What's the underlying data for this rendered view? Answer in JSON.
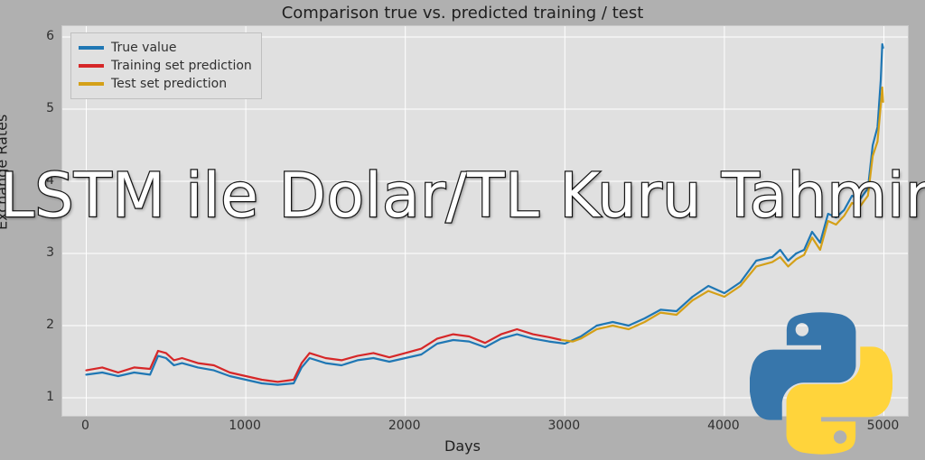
{
  "chart": {
    "type": "line",
    "title": "Comparison true vs. predicted training / test",
    "xlabel": "Days",
    "ylabel": "Exchange Rates",
    "title_fontsize": 18,
    "label_fontsize": 16,
    "tick_fontsize": 14,
    "background_color": "#b0b0b0",
    "plot_bg_color": "#e0e0e0",
    "grid_color": "#ffffff",
    "xlim": [
      -150,
      5150
    ],
    "ylim": [
      0.75,
      6.15
    ],
    "xticks": [
      0,
      1000,
      2000,
      3000,
      4000,
      5000
    ],
    "yticks": [
      1,
      2,
      3,
      4,
      5,
      6
    ],
    "line_width": 2.2,
    "legend": {
      "position": "upper-left",
      "items": [
        {
          "label": "True value",
          "color": "#1f77b4"
        },
        {
          "label": "Training set prediction",
          "color": "#d62728"
        },
        {
          "label": "Test set prediction",
          "color": "#d4a018"
        }
      ]
    },
    "series": {
      "true_value": {
        "color": "#1f77b4",
        "x": [
          0,
          100,
          200,
          300,
          400,
          450,
          500,
          550,
          600,
          700,
          800,
          900,
          1000,
          1100,
          1200,
          1300,
          1350,
          1400,
          1500,
          1600,
          1700,
          1800,
          1900,
          2000,
          2100,
          2200,
          2300,
          2400,
          2500,
          2600,
          2700,
          2800,
          2900,
          3000,
          3100,
          3200,
          3300,
          3400,
          3500,
          3600,
          3700,
          3800,
          3900,
          4000,
          4100,
          4200,
          4300,
          4350,
          4400,
          4450,
          4500,
          4550,
          4600,
          4650,
          4700,
          4750,
          4800,
          4850,
          4900,
          4930,
          4960,
          4980,
          4990,
          4995
        ],
        "y": [
          1.32,
          1.35,
          1.3,
          1.35,
          1.32,
          1.58,
          1.55,
          1.45,
          1.48,
          1.42,
          1.38,
          1.3,
          1.25,
          1.2,
          1.18,
          1.2,
          1.42,
          1.55,
          1.48,
          1.45,
          1.52,
          1.55,
          1.5,
          1.55,
          1.6,
          1.75,
          1.8,
          1.78,
          1.7,
          1.82,
          1.88,
          1.82,
          1.78,
          1.75,
          1.85,
          2.0,
          2.05,
          2.0,
          2.1,
          2.22,
          2.2,
          2.4,
          2.55,
          2.45,
          2.6,
          2.9,
          2.95,
          3.05,
          2.9,
          3.0,
          3.05,
          3.3,
          3.15,
          3.55,
          3.5,
          3.6,
          3.8,
          3.75,
          3.9,
          4.5,
          4.75,
          5.4,
          5.9,
          5.85
        ]
      },
      "train_pred": {
        "color": "#d62728",
        "x": [
          0,
          100,
          200,
          300,
          400,
          450,
          500,
          550,
          600,
          700,
          800,
          900,
          1000,
          1100,
          1200,
          1300,
          1350,
          1400,
          1500,
          1600,
          1700,
          1800,
          1900,
          2000,
          2100,
          2200,
          2300,
          2400,
          2500,
          2600,
          2700,
          2800,
          2900,
          2980
        ],
        "y": [
          1.38,
          1.42,
          1.35,
          1.42,
          1.4,
          1.65,
          1.62,
          1.52,
          1.55,
          1.48,
          1.45,
          1.35,
          1.3,
          1.25,
          1.22,
          1.25,
          1.48,
          1.62,
          1.55,
          1.52,
          1.58,
          1.62,
          1.56,
          1.62,
          1.68,
          1.82,
          1.88,
          1.85,
          1.76,
          1.88,
          1.95,
          1.88,
          1.84,
          1.8
        ]
      },
      "test_pred": {
        "color": "#d4a018",
        "x": [
          2980,
          3050,
          3100,
          3200,
          3300,
          3400,
          3500,
          3600,
          3700,
          3800,
          3900,
          4000,
          4100,
          4200,
          4300,
          4350,
          4400,
          4450,
          4500,
          4550,
          4600,
          4650,
          4700,
          4750,
          4800,
          4850,
          4900,
          4930,
          4960,
          4980,
          4990,
          4995
        ],
        "y": [
          1.8,
          1.78,
          1.82,
          1.95,
          2.0,
          1.95,
          2.05,
          2.18,
          2.15,
          2.35,
          2.48,
          2.4,
          2.55,
          2.82,
          2.88,
          2.95,
          2.82,
          2.92,
          2.98,
          3.22,
          3.05,
          3.45,
          3.4,
          3.52,
          3.7,
          3.65,
          3.8,
          4.35,
          4.55,
          5.05,
          5.3,
          5.1
        ]
      }
    }
  },
  "overlay": {
    "headline": "LSTM ile Dolar/TL Kuru Tahmini",
    "headline_color": "#ffffff",
    "headline_stroke": "#1a1a1a",
    "headline_fontsize": 68
  },
  "logo": {
    "name": "python-logo",
    "blue": "#3776ab",
    "yellow": "#ffd43b"
  }
}
